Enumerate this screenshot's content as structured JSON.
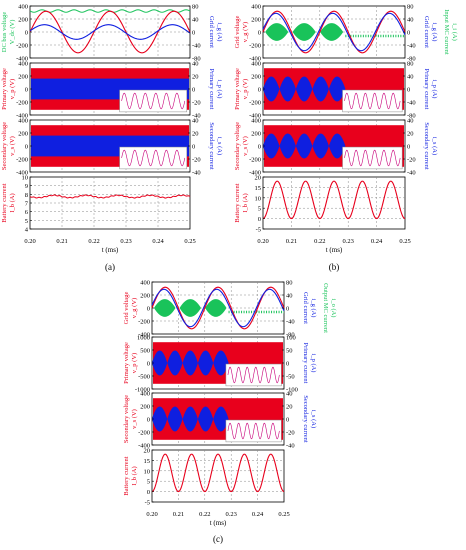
{
  "colors": {
    "red": "#e8001c",
    "blue": "#0f1fe0",
    "green": "#19c35a",
    "grid": "#8a8a8a",
    "axis": "#000000",
    "inset_pink": "#c8007a"
  },
  "x_axis": {
    "label": "t (ms)",
    "ticks": [
      "0.20",
      "0.21",
      "0.22",
      "0.23",
      "0.24",
      "0.25"
    ],
    "range": [
      0.2,
      0.25
    ]
  },
  "panels": [
    {
      "caption": "(a)",
      "subplots": [
        {
          "left_label": [
            "DC bus voltage",
            "V_dc (V)"
          ],
          "right_label": [
            "Grid current",
            "i_g (A)"
          ],
          "left_label_color": "green",
          "right_label_color": "blue",
          "left_ticks": [
            400,
            200,
            0,
            -200,
            -400
          ],
          "right_ticks": [
            80,
            40,
            0,
            -40,
            -80
          ],
          "traces": [
            "dc_bus_green",
            "sine_red",
            "sine_blue_small"
          ]
        },
        {
          "left_label": [
            "Primary voltage",
            "v_p (V)"
          ],
          "right_label": [
            "Primary current",
            "i_p (A)"
          ],
          "left_label_color": "red",
          "right_label_color": "blue",
          "left_ticks": [
            400,
            200,
            0,
            -200,
            -400
          ],
          "right_ticks": [
            40,
            20,
            0,
            -20,
            -40
          ],
          "traces": [
            "red_band",
            "blue_band",
            "inset"
          ]
        },
        {
          "left_label": [
            "Secondary voltage",
            "v_s (V)"
          ],
          "right_label": [
            "Secondary current",
            "i_s (A)"
          ],
          "left_label_color": "red",
          "right_label_color": "blue",
          "left_ticks": [
            400,
            200,
            0,
            -200,
            -400
          ],
          "right_ticks": [
            40,
            20,
            0,
            -20,
            -40
          ],
          "traces": [
            "red_band",
            "blue_band",
            "inset"
          ]
        },
        {
          "left_label": [
            "Battery current",
            "I_b (A)"
          ],
          "left_label_color": "red",
          "left_ticks": [
            10,
            9,
            8,
            7,
            6,
            5,
            4
          ],
          "traces": [
            "battery_flat"
          ]
        }
      ]
    },
    {
      "caption": "(b)",
      "subplots": [
        {
          "left_label": [
            "Grid voltage",
            "v_g (V)"
          ],
          "right_label": [
            "Grid current",
            "i_g (A)",
            "Input MC current",
            "i_i (A)"
          ],
          "left_label_color": "red",
          "right_label_color": "blue",
          "left_ticks": [
            400,
            200,
            0,
            -200,
            -400
          ],
          "right_ticks": [
            80,
            40,
            0,
            -40,
            -80
          ],
          "traces": [
            "green_burst",
            "sine_red",
            "sine_blue"
          ]
        },
        {
          "left_label": [
            "Primary voltage",
            "v_p (V)"
          ],
          "right_label": [
            "Primary current",
            "i_p (A)"
          ],
          "left_label_color": "red",
          "right_label_color": "blue",
          "left_ticks": [
            400,
            200,
            0,
            -200,
            -400
          ],
          "right_ticks": [
            80,
            40,
            0,
            -40,
            -80
          ],
          "traces": [
            "red_band",
            "blue_lobes",
            "inset"
          ]
        },
        {
          "left_label": [
            "Secondary voltage",
            "v_s (V)"
          ],
          "right_label": [
            "Secondary current",
            "i_s (A)"
          ],
          "left_label_color": "red",
          "right_label_color": "blue",
          "left_ticks": [
            400,
            200,
            0,
            -200,
            -400
          ],
          "right_ticks": [
            40,
            20,
            0,
            -20,
            -40
          ],
          "traces": [
            "red_band",
            "blue_lobes",
            "inset"
          ]
        },
        {
          "left_label": [
            "Battery current",
            "I_b (A)"
          ],
          "left_label_color": "red",
          "left_ticks": [
            20,
            15,
            10,
            5,
            0,
            -5
          ],
          "traces": [
            "battery_sine"
          ]
        }
      ]
    },
    {
      "caption": "(c)",
      "subplots": [
        {
          "left_label": [
            "Grid voltage",
            "v_g (V)"
          ],
          "right_label": [
            "Grid current",
            "i_g (A)",
            "Output MC current",
            "i_o (A)"
          ],
          "left_label_color": "red",
          "right_label_color": "blue",
          "left_ticks": [
            400,
            200,
            0,
            -200,
            -400
          ],
          "right_ticks": [
            80,
            40,
            0,
            -40,
            -80
          ],
          "traces": [
            "green_burst",
            "sine_red",
            "sine_blue"
          ]
        },
        {
          "left_label": [
            "Primary voltage",
            "v_p (V)"
          ],
          "right_label": [
            "Primary current",
            "i_p (A)"
          ],
          "left_label_color": "red",
          "right_label_color": "blue",
          "left_ticks": [
            1000,
            500,
            0,
            -500,
            -1000
          ],
          "right_ticks": [
            100,
            50,
            0,
            -50,
            -100
          ],
          "traces": [
            "red_band",
            "blue_lobes",
            "inset"
          ]
        },
        {
          "left_label": [
            "Secondary voltage",
            "v_s (V)"
          ],
          "right_label": [
            "Secondary current",
            "i_s (A)"
          ],
          "left_label_color": "red",
          "right_label_color": "blue",
          "left_ticks": [
            400,
            200,
            0,
            -200,
            -400
          ],
          "right_ticks": [
            40,
            20,
            0,
            -20,
            -40
          ],
          "traces": [
            "red_band",
            "blue_lobes",
            "inset"
          ]
        },
        {
          "left_label": [
            "Battery current",
            "I_b (A)"
          ],
          "left_label_color": "red",
          "left_ticks": [
            20,
            15,
            10,
            5,
            0,
            -5
          ],
          "traces": [
            "battery_sine"
          ]
        }
      ]
    }
  ],
  "chart_data": [
    {
      "type": "line",
      "panel": "(a)",
      "x": [
        0.2,
        0.21,
        0.22,
        0.23,
        0.24,
        0.25
      ],
      "xlabel": "t (ms)",
      "series": [
        {
          "name": "V_dc",
          "values": [
            370,
            372,
            370,
            372,
            370,
            372
          ]
        },
        {
          "name": "i_g",
          "values": [
            0,
            60,
            -60,
            60,
            -60,
            0
          ]
        },
        {
          "name": "I_b",
          "values": [
            7.7,
            7.9,
            7.6,
            7.9,
            7.6,
            7.8
          ]
        }
      ],
      "ylim_dc": [
        -400,
        400
      ],
      "ylim_battery": [
        4,
        10
      ]
    },
    {
      "type": "line",
      "panel": "(b)",
      "x": [
        0.2,
        0.21,
        0.22,
        0.23,
        0.24,
        0.25
      ],
      "xlabel": "t (ms)",
      "series": [
        {
          "name": "v_g",
          "values": [
            0,
            300,
            -300,
            300,
            -300,
            0
          ]
        },
        {
          "name": "I_b",
          "values": [
            0,
            18,
            0,
            18,
            0,
            18
          ]
        }
      ],
      "ylim_battery": [
        -5,
        20
      ]
    },
    {
      "type": "line",
      "panel": "(c)",
      "x": [
        0.2,
        0.21,
        0.22,
        0.23,
        0.24,
        0.25
      ],
      "xlabel": "t (ms)",
      "series": [
        {
          "name": "v_g",
          "values": [
            0,
            300,
            -300,
            300,
            -300,
            0
          ]
        },
        {
          "name": "I_b",
          "values": [
            0,
            18,
            0,
            18,
            0,
            18
          ]
        }
      ],
      "ylim_primary": [
        -1000,
        1000
      ],
      "ylim_battery": [
        -5,
        20
      ]
    }
  ]
}
